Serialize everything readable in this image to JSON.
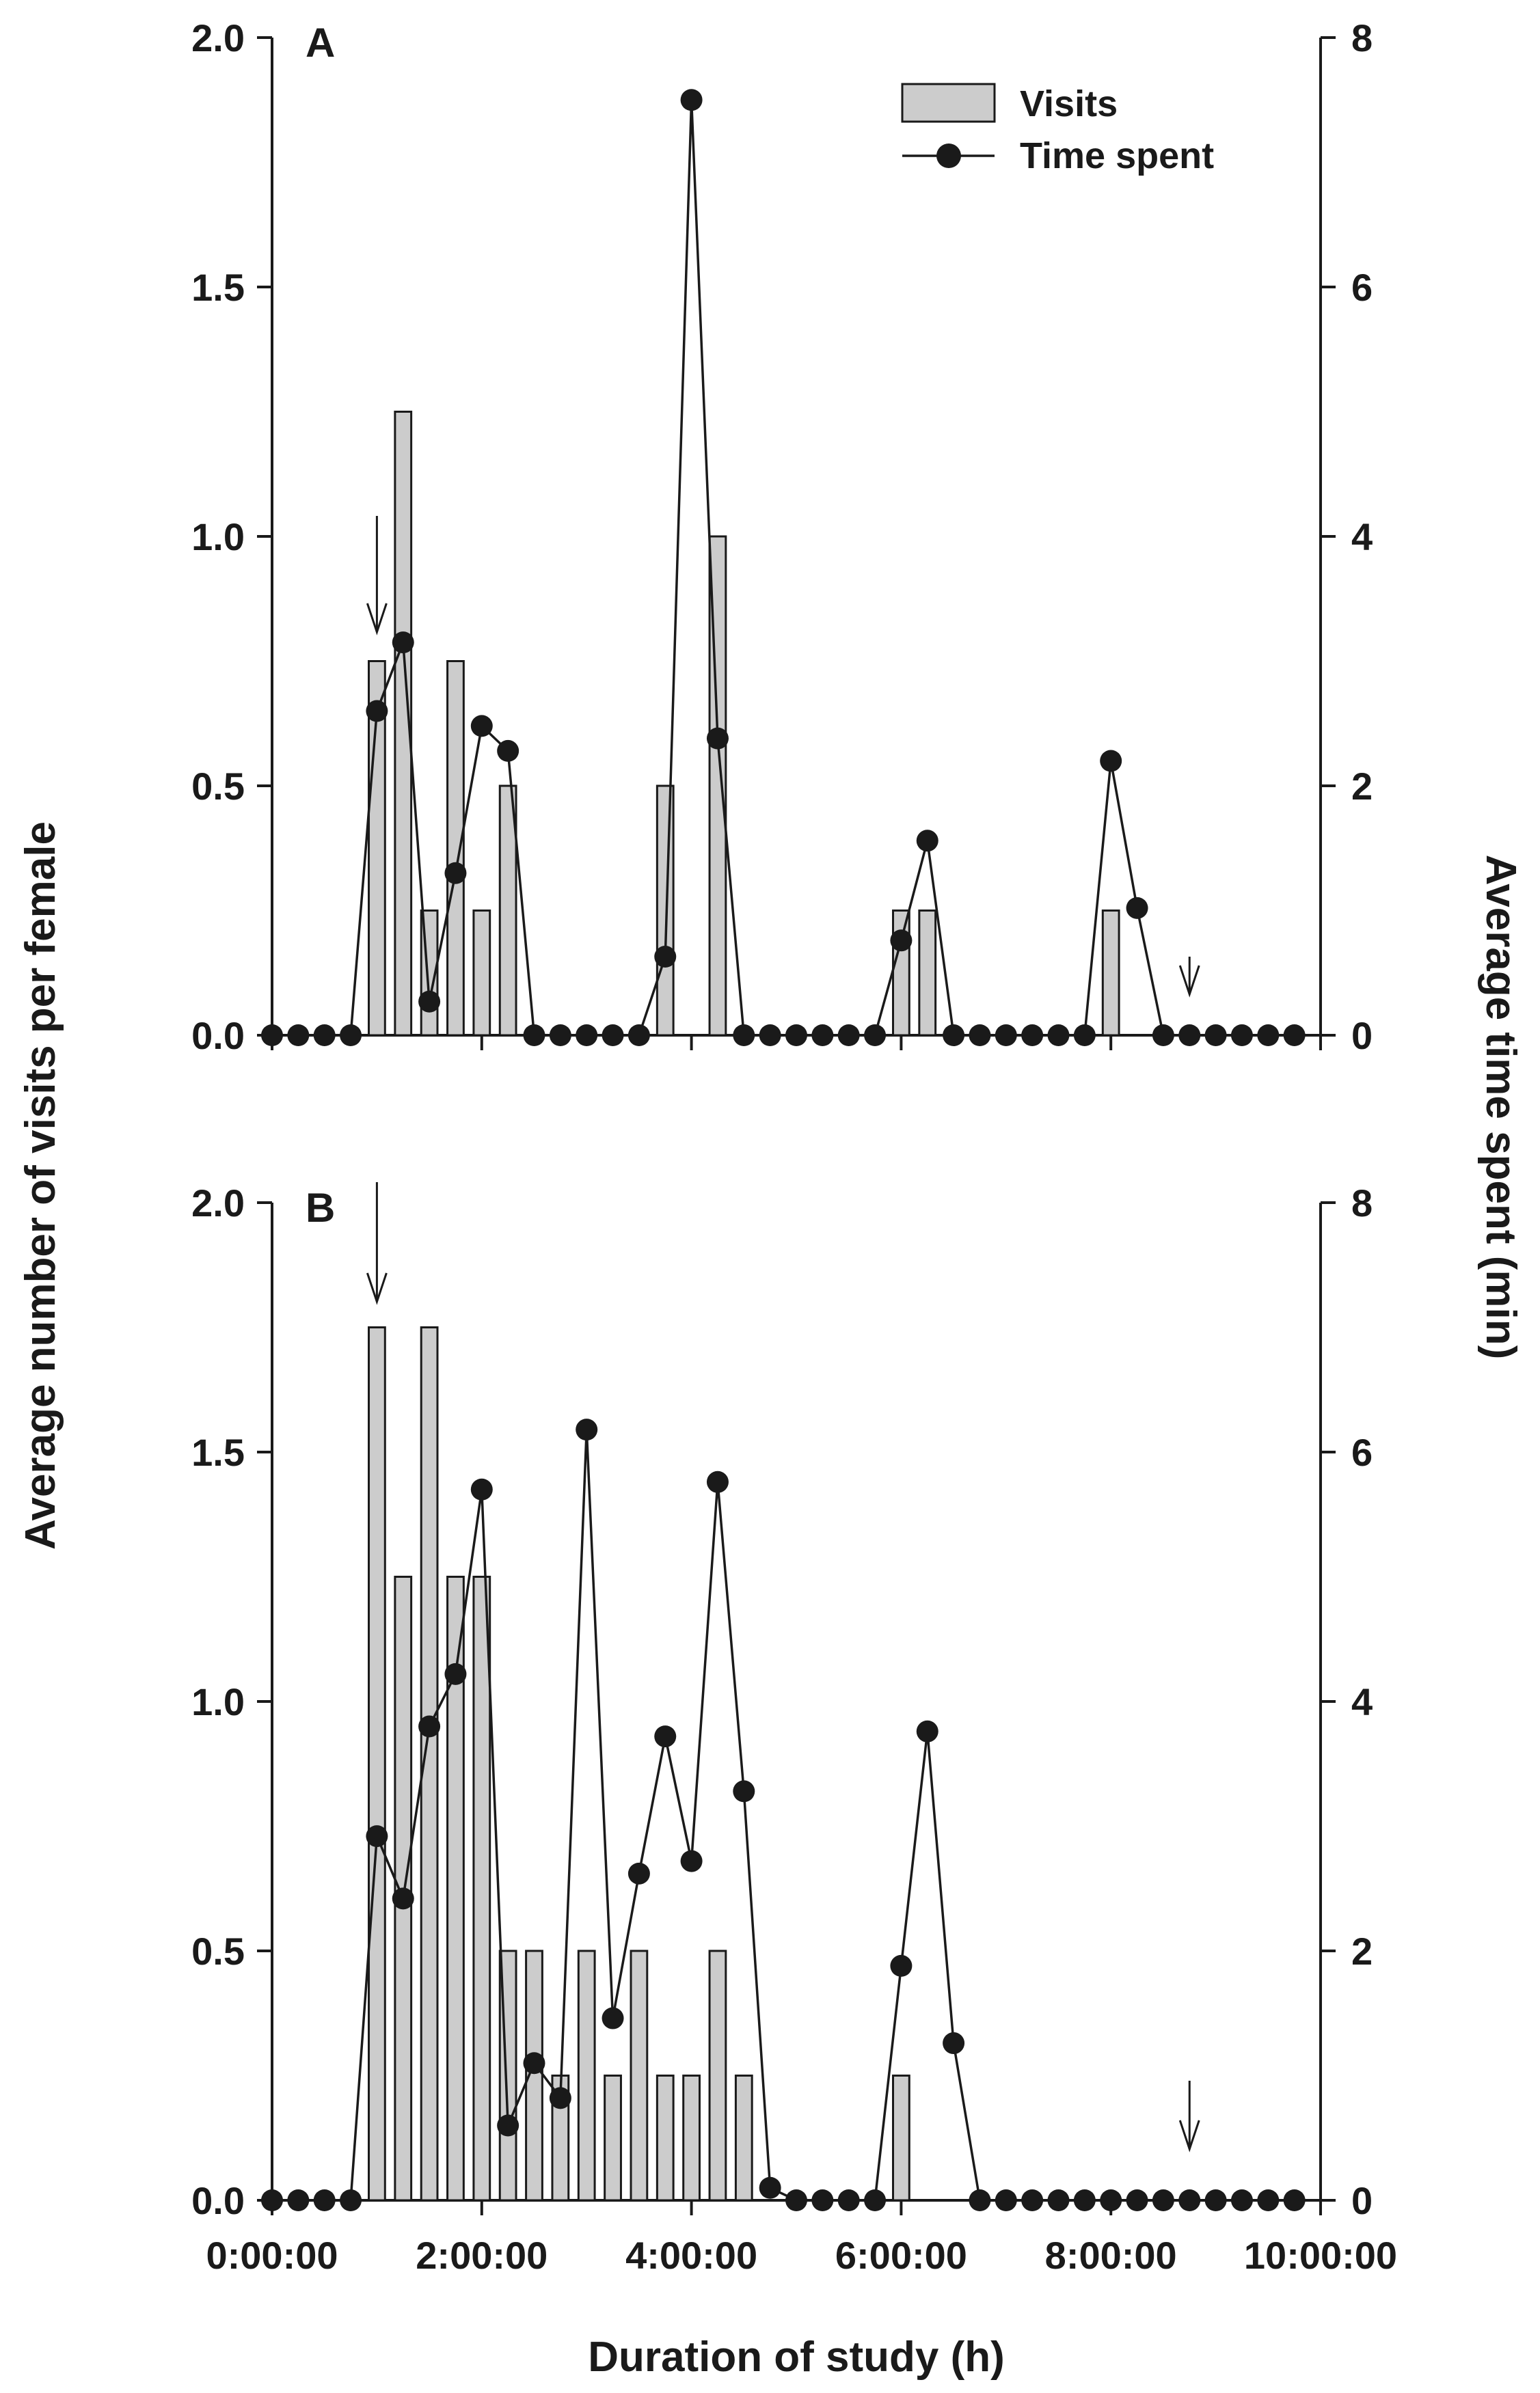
{
  "chart_data": [
    {
      "type": "bar+line",
      "panel_label": "A",
      "x_interval_hours": 0.25,
      "left_axis": {
        "label": "Average number of visits per female",
        "range": [
          0,
          2
        ],
        "ticks": [
          "0.0",
          "0.5",
          "1.0",
          "1.5",
          "2.0"
        ]
      },
      "right_axis": {
        "label": "Average time spent (min)",
        "range": [
          0,
          8
        ],
        "ticks": [
          "0",
          "2",
          "4",
          "6",
          "8"
        ]
      },
      "legend": {
        "position": "top-right",
        "entries": [
          "Visits",
          "Time spent"
        ]
      },
      "series": [
        {
          "name": "Visits",
          "kind": "bar",
          "axis": "left",
          "values": [
            0,
            0,
            0,
            0,
            0.75,
            1.25,
            0.25,
            0.75,
            0.25,
            0.5,
            0,
            0,
            0,
            0,
            0,
            0.5,
            0,
            1.0,
            0,
            0,
            0,
            0,
            0,
            0,
            0.25,
            0.25,
            0,
            0,
            0,
            0,
            0,
            0,
            0.25,
            0,
            0,
            0,
            0,
            0,
            0,
            0
          ]
        },
        {
          "name": "Time spent",
          "kind": "line",
          "axis": "right",
          "values": [
            0,
            0,
            0,
            0,
            2.6,
            3.15,
            0.27,
            1.3,
            2.48,
            2.28,
            0,
            0,
            0,
            0,
            0,
            0.63,
            7.5,
            2.38,
            0,
            0,
            0,
            0,
            0,
            0,
            0.76,
            1.56,
            0,
            0,
            0,
            0,
            0,
            0,
            2.2,
            1.02,
            0,
            0,
            0,
            0,
            0,
            0
          ]
        }
      ],
      "annotations": [
        {
          "type": "arrow",
          "x_hours": 1.0,
          "note": "down arrow"
        },
        {
          "type": "arrow",
          "x_hours": 8.75,
          "note": "down arrow"
        }
      ]
    },
    {
      "type": "bar+line",
      "panel_label": "B",
      "x_interval_hours": 0.25,
      "left_axis": {
        "label": "Average number of visits per female",
        "range": [
          0,
          2
        ],
        "ticks": [
          "0.0",
          "0.5",
          "1.0",
          "1.5",
          "2.0"
        ]
      },
      "right_axis": {
        "label": "Average time spent (min)",
        "range": [
          0,
          8
        ],
        "ticks": [
          "0",
          "2",
          "4",
          "6",
          "8"
        ]
      },
      "series": [
        {
          "name": "Visits",
          "kind": "bar",
          "axis": "left",
          "values": [
            0,
            0,
            0,
            0,
            1.75,
            1.25,
            1.75,
            1.25,
            1.25,
            0.5,
            0.5,
            0.25,
            0.5,
            0.25,
            0.5,
            0.25,
            0.25,
            0.5,
            0.25,
            0,
            0,
            0,
            0,
            0,
            0.25,
            0,
            0,
            0,
            0,
            0,
            0,
            0,
            0,
            0,
            0,
            0,
            0,
            0,
            0,
            0
          ]
        },
        {
          "name": "Time spent",
          "kind": "line",
          "axis": "right",
          "values": [
            0,
            0,
            0,
            0,
            2.92,
            2.42,
            3.8,
            4.22,
            5.7,
            0.6,
            1.1,
            0.82,
            6.18,
            1.46,
            2.62,
            3.72,
            2.72,
            5.76,
            3.28,
            0.1,
            0,
            0,
            0,
            0,
            1.88,
            3.76,
            1.26,
            0,
            0,
            0,
            0,
            0,
            0,
            0,
            0,
            0,
            0,
            0,
            0,
            0
          ]
        }
      ],
      "annotations": [
        {
          "type": "arrow",
          "x_hours": 1.0,
          "note": "down arrow"
        },
        {
          "type": "arrow",
          "x_hours": 8.75,
          "note": "down arrow"
        }
      ]
    }
  ],
  "x_axis": {
    "label": "Duration of study (h)",
    "ticks": [
      "0:00:00",
      "2:00:00",
      "4:00:00",
      "6:00:00",
      "8:00:00",
      "10:00:00"
    ],
    "range_hours": [
      0,
      10
    ]
  },
  "colors": {
    "bar_fill": "#cccccc",
    "stroke": "#1a1a1a",
    "marker": "#1a1a1a"
  },
  "y_label_left": "Average number of visits per female",
  "y_label_right": "Average time spent (min)",
  "x_label": "Duration of study (h)",
  "legend": {
    "visits": "Visits",
    "time_spent": "Time spent"
  },
  "panel_labels": {
    "a": "A",
    "b": "B"
  }
}
